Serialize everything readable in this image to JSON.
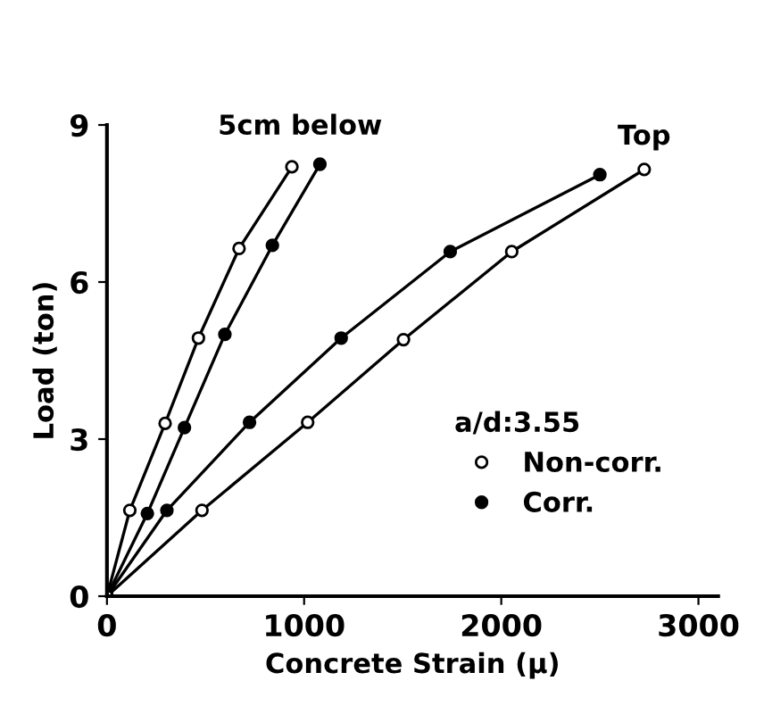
{
  "chart_data": {
    "type": "line",
    "xlabel": "Concrete Strain (μ)",
    "ylabel": "Load (ton)",
    "legend_title": "a/d:3.55",
    "legend": "right",
    "xlim": [
      0,
      3100
    ],
    "ylim": [
      0,
      9
    ],
    "xticks": [
      0,
      1000,
      2000,
      3000
    ],
    "yticks": [
      0,
      3,
      6,
      9
    ],
    "grid": false,
    "marker": "circle",
    "line_style": "solid",
    "series": [
      {
        "name": "Non-corr.",
        "color": "#ffffff",
        "x": [
          0,
          116,
          295,
          464,
          670,
          938
        ],
        "values": [
          0,
          1.64,
          3.3,
          4.93,
          6.64,
          8.2
        ]
      },
      {
        "name": "Corr.",
        "color": "#000000",
        "x": [
          0,
          205,
          393,
          598,
          839,
          1080
        ],
        "values": [
          0,
          1.58,
          3.22,
          5.0,
          6.7,
          8.25
        ]
      },
      {
        "color": "#000000",
        "x": [
          0,
          304,
          723,
          1188,
          1741,
          2500
        ],
        "values": [
          0,
          1.64,
          3.32,
          4.93,
          6.58,
          8.05
        ]
      },
      {
        "color": "#ffffff",
        "x": [
          0,
          482,
          1018,
          1504,
          2053,
          2725
        ],
        "values": [
          0,
          1.64,
          3.32,
          4.9,
          6.58,
          8.15
        ]
      }
    ],
    "annotations": [
      {
        "text": "5cm below",
        "x": 1080,
        "y": 8.25
      },
      {
        "text": "Top",
        "x": 2725,
        "y": 8.15
      }
    ]
  }
}
